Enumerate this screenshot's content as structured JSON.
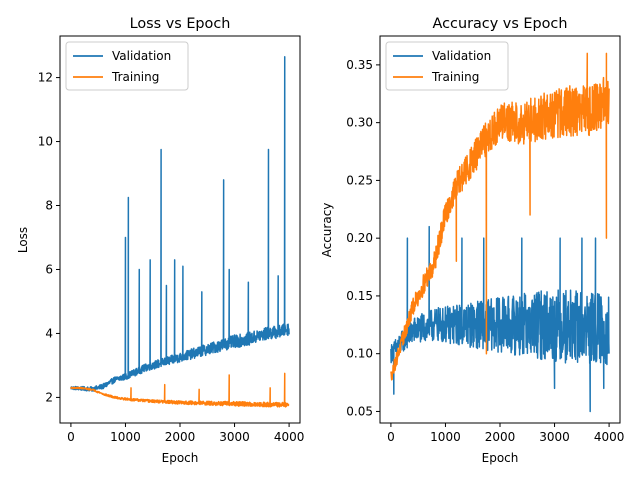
{
  "chart_data": [
    {
      "type": "line",
      "title": "Loss vs Epoch",
      "xlabel": "Epoch",
      "ylabel": "Loss",
      "xlim": [
        -200,
        4200
      ],
      "ylim": [
        1.2,
        13.3
      ],
      "xticks": [
        0,
        1000,
        2000,
        3000,
        4000
      ],
      "xtick_labels": [
        "0",
        "1000",
        "2000",
        "3000",
        "4000"
      ],
      "yticks": [
        2,
        4,
        6,
        8,
        10,
        12
      ],
      "ytick_labels": [
        "2",
        "4",
        "6",
        "8",
        "10",
        "12"
      ],
      "grid": false,
      "legend_position": "top-left",
      "series": [
        {
          "name": "Validation",
          "color": "#1f77b4",
          "noise": 0.2,
          "points": [
            [
              0,
              2.3
            ],
            [
              200,
              2.28
            ],
            [
              400,
              2.26
            ],
            [
              600,
              2.35
            ],
            [
              800,
              2.55
            ],
            [
              1000,
              2.65
            ],
            [
              1200,
              2.8
            ],
            [
              1400,
              2.95
            ],
            [
              1600,
              3.05
            ],
            [
              1800,
              3.15
            ],
            [
              2000,
              3.25
            ],
            [
              2200,
              3.35
            ],
            [
              2400,
              3.45
            ],
            [
              2600,
              3.55
            ],
            [
              2800,
              3.65
            ],
            [
              3000,
              3.75
            ],
            [
              3200,
              3.8
            ],
            [
              3400,
              3.9
            ],
            [
              3600,
              4.0
            ],
            [
              3800,
              4.05
            ],
            [
              4000,
              4.15
            ]
          ],
          "spikes": [
            [
              1000,
              7.0
            ],
            [
              1050,
              8.25
            ],
            [
              1250,
              6.0
            ],
            [
              1450,
              6.3
            ],
            [
              1650,
              9.75
            ],
            [
              1750,
              5.5
            ],
            [
              1900,
              6.3
            ],
            [
              2050,
              6.1
            ],
            [
              2400,
              5.3
            ],
            [
              2800,
              8.8
            ],
            [
              2900,
              6.0
            ],
            [
              3250,
              5.6
            ],
            [
              3620,
              9.75
            ],
            [
              3800,
              5.8
            ],
            [
              3920,
              12.65
            ]
          ]
        },
        {
          "name": "Training",
          "color": "#ff7f0e",
          "noise": 0.07,
          "points": [
            [
              0,
              2.3
            ],
            [
              200,
              2.29
            ],
            [
              400,
              2.24
            ],
            [
              600,
              2.1
            ],
            [
              800,
              2.0
            ],
            [
              1000,
              1.95
            ],
            [
              1200,
              1.92
            ],
            [
              1500,
              1.88
            ],
            [
              2000,
              1.84
            ],
            [
              2500,
              1.82
            ],
            [
              3000,
              1.8
            ],
            [
              3500,
              1.78
            ],
            [
              4000,
              1.77
            ]
          ],
          "spikes": [
            [
              1100,
              2.3
            ],
            [
              1720,
              2.4
            ],
            [
              2350,
              2.25
            ],
            [
              2900,
              2.7
            ],
            [
              3650,
              2.3
            ],
            [
              3920,
              2.75
            ]
          ]
        }
      ]
    },
    {
      "type": "line",
      "title": "Accuracy vs Epoch",
      "xlabel": "Epoch",
      "ylabel": "Accuracy",
      "xlim": [
        -200,
        4200
      ],
      "ylim": [
        0.04,
        0.375
      ],
      "xticks": [
        0,
        1000,
        2000,
        3000,
        4000
      ],
      "xtick_labels": [
        "0",
        "1000",
        "2000",
        "3000",
        "4000"
      ],
      "yticks": [
        0.05,
        0.1,
        0.15,
        0.2,
        0.25,
        0.3,
        0.35
      ],
      "ytick_labels": [
        "0.05",
        "0.10",
        "0.15",
        "0.20",
        "0.25",
        "0.30",
        "0.35"
      ],
      "grid": false,
      "legend_position": "top-left",
      "series": [
        {
          "name": "Validation",
          "color": "#1f77b4",
          "noise": 0.032,
          "points": [
            [
              0,
              0.1
            ],
            [
              200,
              0.11
            ],
            [
              400,
              0.12
            ],
            [
              800,
              0.125
            ],
            [
              1200,
              0.125
            ],
            [
              2000,
              0.125
            ],
            [
              3000,
              0.125
            ],
            [
              4000,
              0.12
            ]
          ],
          "spikes": [
            [
              50,
              0.065
            ],
            [
              300,
              0.2
            ],
            [
              700,
              0.21
            ],
            [
              1300,
              0.2
            ],
            [
              1700,
              0.2
            ],
            [
              2400,
              0.2
            ],
            [
              3100,
              0.2
            ],
            [
              3500,
              0.2
            ],
            [
              3750,
              0.2
            ],
            [
              3000,
              0.07
            ],
            [
              3650,
              0.05
            ],
            [
              3900,
              0.07
            ]
          ]
        },
        {
          "name": "Training",
          "color": "#ff7f0e",
          "noise": 0.022,
          "points": [
            [
              0,
              0.08
            ],
            [
              200,
              0.11
            ],
            [
              400,
              0.14
            ],
            [
              600,
              0.16
            ],
            [
              800,
              0.18
            ],
            [
              1000,
              0.22
            ],
            [
              1200,
              0.245
            ],
            [
              1400,
              0.26
            ],
            [
              1600,
              0.275
            ],
            [
              1800,
              0.29
            ],
            [
              2000,
              0.3
            ],
            [
              2400,
              0.3
            ],
            [
              2800,
              0.305
            ],
            [
              3200,
              0.31
            ],
            [
              3600,
              0.31
            ],
            [
              4000,
              0.32
            ]
          ],
          "spikes": [
            [
              1750,
              0.1
            ],
            [
              3950,
              0.2
            ],
            [
              2550,
              0.22
            ],
            [
              3600,
              0.36
            ],
            [
              3950,
              0.36
            ],
            [
              1200,
              0.18
            ]
          ]
        }
      ]
    }
  ]
}
